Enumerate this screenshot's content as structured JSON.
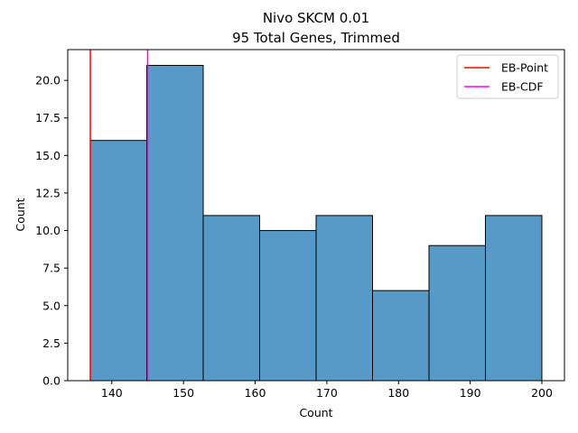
{
  "chart_data": {
    "type": "bar",
    "title_lines": [
      "Nivo SKCM 0.01",
      "95 Total Genes, Trimmed"
    ],
    "xlabel": "Count",
    "ylabel": "Count",
    "bin_edges": [
      137.0,
      144.875,
      152.75,
      160.625,
      168.5,
      176.375,
      184.25,
      192.125,
      200.0
    ],
    "values": [
      16,
      21,
      11,
      10,
      11,
      6,
      9,
      11
    ],
    "xlim": [
      133.85,
      203.15
    ],
    "ylim": [
      0,
      22.05
    ],
    "xticks": [
      140,
      150,
      160,
      170,
      180,
      190,
      200
    ],
    "xtick_labels": [
      "140",
      "150",
      "160",
      "170",
      "180",
      "190",
      "200"
    ],
    "yticks": [
      0.0,
      2.5,
      5.0,
      7.5,
      10.0,
      12.5,
      15.0,
      17.5,
      20.0
    ],
    "ytick_labels": [
      "0.0",
      "2.5",
      "5.0",
      "7.5",
      "10.0",
      "12.5",
      "15.0",
      "17.5",
      "20.0"
    ],
    "bar_color": "#5799c7",
    "vlines": [
      {
        "name": "EB-Point",
        "x": 137.0,
        "color": "#ff0000"
      },
      {
        "name": "EB-CDF",
        "x": 145.0,
        "color": "#ff00ff"
      }
    ],
    "legend_position": "upper right",
    "grid": false
  }
}
